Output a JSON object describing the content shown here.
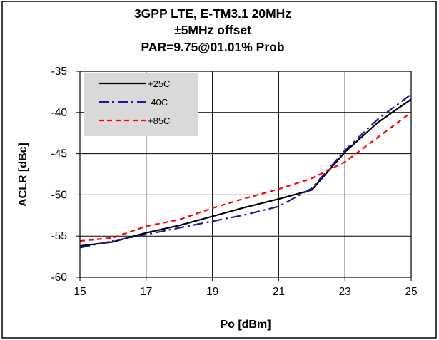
{
  "chart_data": {
    "type": "line",
    "title_lines": [
      "3GPP LTE, E-TM3.1 20MHz",
      "±5MHz offset",
      "PAR=9.75@01.01% Prob"
    ],
    "xlabel": "Po [dBm]",
    "ylabel": "ACLR [dBc]",
    "xlim": [
      15,
      25
    ],
    "ylim": [
      -60,
      -35
    ],
    "xticks": [
      15,
      17,
      19,
      21,
      23,
      25
    ],
    "yticks": [
      -60,
      -55,
      -50,
      -45,
      -40,
      -35
    ],
    "grid": true,
    "legend_position": "top-left",
    "series": [
      {
        "name": "+25C",
        "color": "#000000",
        "dash": "solid",
        "x": [
          15,
          16,
          17,
          18,
          19,
          20,
          21,
          22,
          23,
          24,
          25
        ],
        "y": [
          -56.2,
          -55.7,
          -54.6,
          -53.7,
          -52.6,
          -51.5,
          -50.5,
          -49.4,
          -44.8,
          -41.2,
          -38.4
        ]
      },
      {
        "name": "-40C",
        "color": "#1a1aa0",
        "dash": "dashdot",
        "x": [
          15,
          16,
          17,
          18,
          19,
          20,
          21,
          22,
          23,
          24,
          25
        ],
        "y": [
          -56.4,
          -55.6,
          -54.8,
          -54.0,
          -53.2,
          -52.4,
          -51.4,
          -49.2,
          -44.6,
          -40.8,
          -37.8
        ]
      },
      {
        "name": "+85C",
        "color": "#ff0000",
        "dash": "dashed",
        "x": [
          15,
          16,
          17,
          18,
          19,
          20,
          21,
          22,
          23,
          24,
          25
        ],
        "y": [
          -55.6,
          -55.2,
          -53.8,
          -53.0,
          -51.6,
          -50.4,
          -49.3,
          -48.0,
          -46.0,
          -43.0,
          -40.0
        ]
      }
    ]
  }
}
